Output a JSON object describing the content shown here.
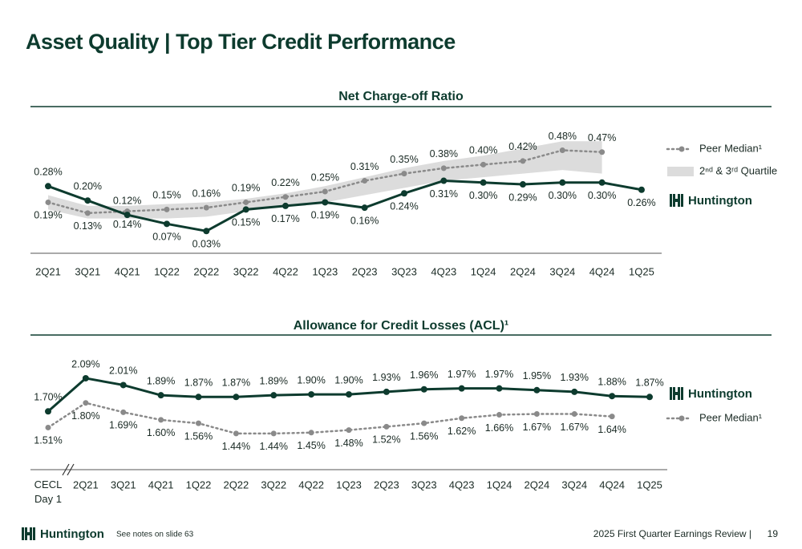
{
  "header": {
    "title": "Asset Quality | Top Tier Credit Performance"
  },
  "footer": {
    "brand": "Huntington",
    "note": "See notes on slide 63",
    "event": "2025 First Quarter Earnings Review |",
    "page": "19"
  },
  "chart_data": [
    {
      "type": "line",
      "title": "Net Charge-off Ratio",
      "categories": [
        "2Q21",
        "3Q21",
        "4Q21",
        "1Q22",
        "2Q22",
        "3Q22",
        "4Q22",
        "1Q23",
        "2Q23",
        "3Q23",
        "4Q23",
        "1Q24",
        "2Q24",
        "3Q24",
        "4Q24",
        "1Q25"
      ],
      "series": [
        {
          "name": "Huntington",
          "color": "#0d3b2e",
          "line_style": "solid",
          "values": [
            0.28,
            0.2,
            0.12,
            0.07,
            0.03,
            0.15,
            0.17,
            0.19,
            0.16,
            0.24,
            0.31,
            0.3,
            0.29,
            0.3,
            0.3,
            0.26
          ],
          "value_labels": [
            "0.28%",
            "0.20%",
            "0.12%",
            "0.07%",
            "0.03%",
            "0.15%",
            "0.17%",
            "0.19%",
            "0.16%",
            "0.24%",
            "0.31%",
            "0.30%",
            "0.29%",
            "0.30%",
            "0.30%",
            "0.26%"
          ]
        },
        {
          "name": "Peer Median¹",
          "color": "#8a8a8a",
          "line_style": "dotted",
          "values": [
            0.19,
            0.13,
            0.14,
            0.15,
            0.16,
            0.19,
            0.22,
            0.25,
            0.31,
            0.35,
            0.38,
            0.4,
            0.42,
            0.48,
            0.47,
            null
          ],
          "value_labels": [
            "0.19%",
            "0.13%",
            "0.14%",
            "0.15%",
            "0.16%",
            "0.19%",
            "0.22%",
            "0.25%",
            "0.31%",
            "0.35%",
            "0.38%",
            "0.40%",
            "0.42%",
            "0.48%",
            "0.47%",
            null
          ]
        }
      ],
      "quartile_band": {
        "name": "2ⁿᵈ & 3ʳᵈ Quartile",
        "color": "#dcdcdc",
        "high": [
          0.23,
          0.17,
          0.17,
          0.18,
          0.19,
          0.21,
          0.24,
          0.28,
          0.33,
          0.38,
          0.42,
          0.45,
          0.49,
          0.53,
          0.53,
          null
        ],
        "low": [
          0.15,
          0.1,
          0.1,
          0.1,
          0.11,
          0.14,
          0.17,
          0.19,
          0.23,
          0.27,
          0.31,
          0.33,
          0.35,
          0.37,
          0.35,
          null
        ]
      }
    },
    {
      "type": "line",
      "title": "Allowance for Credit Losses (ACL)¹",
      "categories": [
        "CECL Day 1",
        "2Q21",
        "3Q21",
        "4Q21",
        "1Q22",
        "2Q22",
        "3Q22",
        "4Q22",
        "1Q23",
        "2Q23",
        "3Q23",
        "4Q23",
        "1Q24",
        "2Q24",
        "3Q24",
        "4Q24",
        "1Q25"
      ],
      "series": [
        {
          "name": "Huntington",
          "color": "#0d3b2e",
          "line_style": "solid",
          "values": [
            1.7,
            2.09,
            2.01,
            1.89,
            1.87,
            1.87,
            1.89,
            1.9,
            1.9,
            1.93,
            1.96,
            1.97,
            1.97,
            1.95,
            1.93,
            1.88,
            1.87
          ],
          "value_labels": [
            "1.70%",
            "2.09%",
            "2.01%",
            "1.89%",
            "1.87%",
            "1.87%",
            "1.89%",
            "1.90%",
            "1.90%",
            "1.93%",
            "1.96%",
            "1.97%",
            "1.97%",
            "1.95%",
            "1.93%",
            "1.88%",
            "1.87%"
          ]
        },
        {
          "name": "Peer Median¹",
          "color": "#8a8a8a",
          "line_style": "dotted",
          "values": [
            1.51,
            1.8,
            1.69,
            1.6,
            1.56,
            1.44,
            1.44,
            1.45,
            1.48,
            1.52,
            1.56,
            1.62,
            1.66,
            1.67,
            1.67,
            1.64,
            null
          ],
          "value_labels": [
            "1.51%",
            "1.80%",
            "1.69%",
            "1.60%",
            "1.56%",
            "1.44%",
            "1.44%",
            "1.45%",
            "1.48%",
            "1.52%",
            "1.56%",
            "1.62%",
            "1.66%",
            "1.67%",
            "1.67%",
            "1.64%",
            null
          ]
        }
      ]
    }
  ]
}
